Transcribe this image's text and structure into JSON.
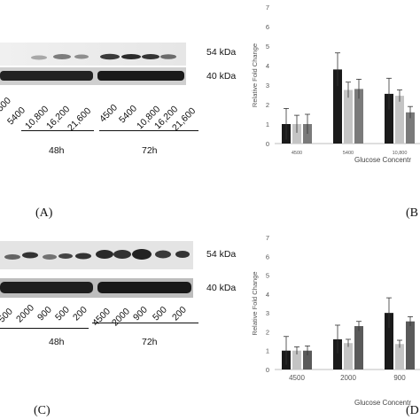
{
  "panels": {
    "A": {
      "label": "(A)",
      "marker_top": "54 kDa",
      "marker_bottom": "40 kDa",
      "lanes_48h": [
        "500",
        "5400",
        "10,800",
        "16,200",
        "21,600"
      ],
      "lanes_72h": [
        "4500",
        "5400",
        "10,800",
        "16,200",
        "21,600"
      ],
      "time_48": "48h",
      "time_72": "72h"
    },
    "B": {
      "label": "(B"
    },
    "C": {
      "label": "(C)",
      "marker_top": "54 kDa",
      "marker_bottom": "40 kDa",
      "lanes_48h": [
        "500",
        "2000",
        "900",
        "500",
        "200"
      ],
      "lanes_72h": [
        "4500",
        "2000",
        "900",
        "500",
        "200"
      ],
      "time_48": "48h",
      "time_72": "72h"
    },
    "D": {
      "label": "(D"
    }
  },
  "chart_data": [
    {
      "type": "bar",
      "title": "",
      "ylabel": "Relative Fold Change",
      "xlabel": "Glucose Concentr",
      "ylim": [
        0,
        7
      ],
      "yticks": [
        "0",
        "1",
        "2",
        "3",
        "4",
        "5",
        "6",
        "7"
      ],
      "categories": [
        "4500",
        "5400",
        "10,800"
      ],
      "colors": [
        "#1a1a1a",
        "#c4c4c4",
        "#7a7a7a"
      ],
      "series": [
        {
          "values": [
            1.0,
            3.8,
            2.55
          ],
          "errors": [
            0.8,
            0.85,
            0.8
          ]
        },
        {
          "values": [
            1.0,
            2.75,
            2.45
          ],
          "errors": [
            0.45,
            0.4,
            0.3
          ]
        },
        {
          "values": [
            1.0,
            2.8,
            1.6
          ],
          "errors": [
            0.5,
            0.5,
            0.3
          ]
        }
      ]
    },
    {
      "type": "bar",
      "title": "",
      "ylabel": "Relative Fold Change",
      "xlabel": "Glucose Concentr",
      "ylim": [
        0,
        7
      ],
      "yticks": [
        "0",
        "1",
        "2",
        "3",
        "4",
        "5",
        "6",
        "7"
      ],
      "categories": [
        "4500",
        "2000",
        "900"
      ],
      "colors": [
        "#1a1a1a",
        "#c4c4c4",
        "#5a5a5a"
      ],
      "series": [
        {
          "values": [
            1.0,
            1.6,
            3.0
          ],
          "errors": [
            0.75,
            0.75,
            0.8
          ]
        },
        {
          "values": [
            1.0,
            1.4,
            1.35
          ],
          "errors": [
            0.2,
            0.2,
            0.2
          ]
        },
        {
          "values": [
            1.0,
            2.3,
            2.55
          ],
          "errors": [
            0.25,
            0.25,
            0.25
          ]
        }
      ]
    }
  ]
}
